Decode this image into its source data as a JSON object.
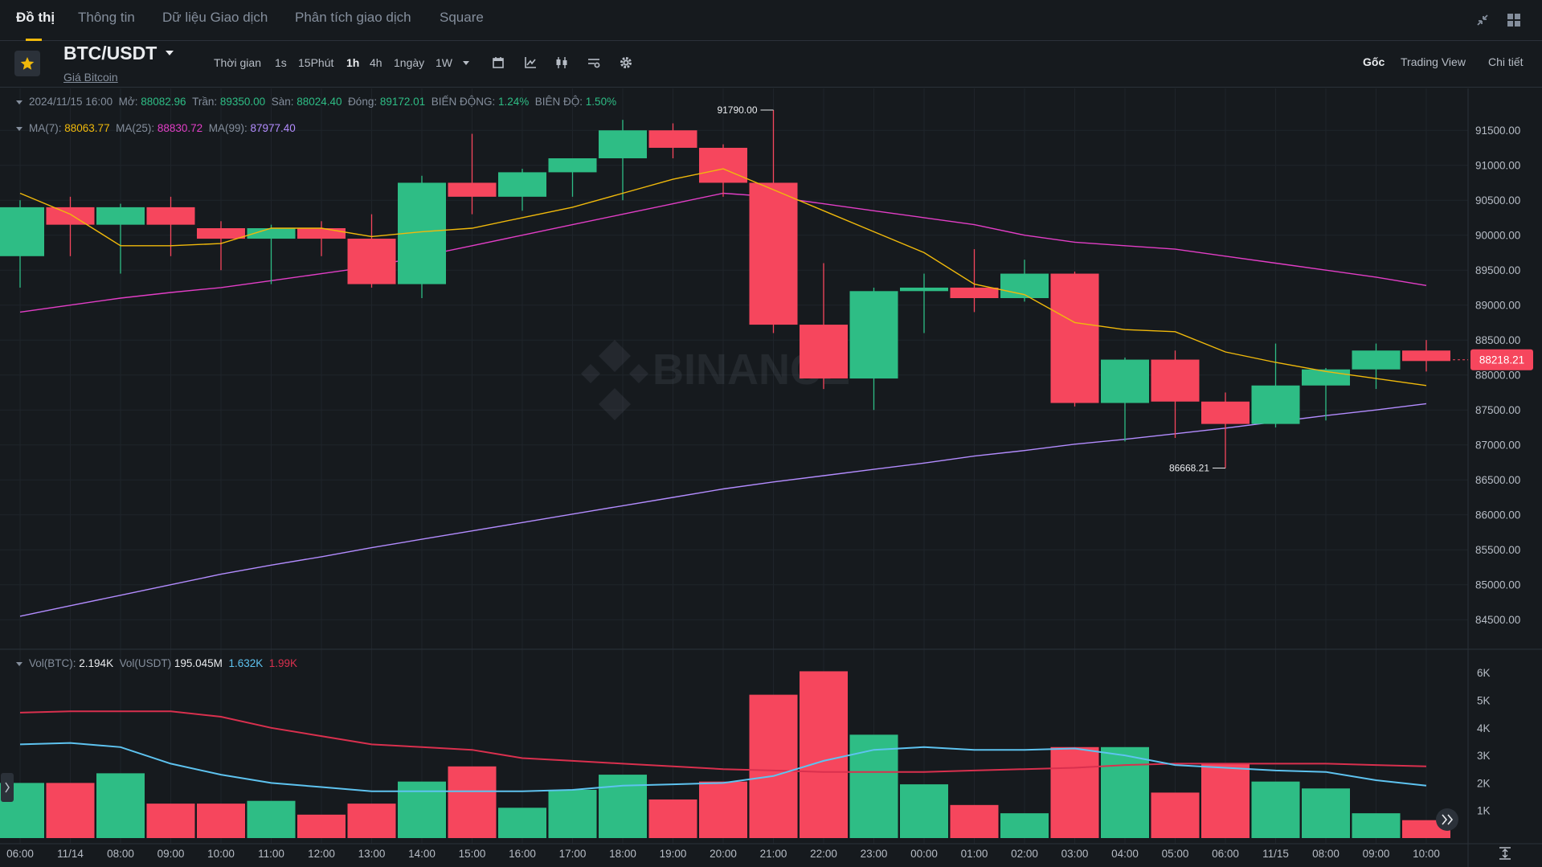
{
  "nav": {
    "tabs": [
      {
        "label": "Đồ thị",
        "active": true
      },
      {
        "label": "Thông tin"
      },
      {
        "label": "Dữ liệu Giao dịch"
      },
      {
        "label": "Phân tích giao dịch"
      },
      {
        "label": "Square"
      }
    ],
    "icons": [
      "collapse-icon",
      "layout-grid-icon"
    ]
  },
  "header": {
    "symbol": "BTC/USDT",
    "subname": "Giá Bitcoin",
    "timeframes": [
      {
        "label": "Thời gian"
      },
      {
        "label": "1s"
      },
      {
        "label": "15Phút"
      },
      {
        "label": "1h",
        "active": true
      },
      {
        "label": "4h"
      },
      {
        "label": "1ngày"
      },
      {
        "label": "1W"
      }
    ],
    "toolbar_icons": [
      "calendar-icon",
      "indicator-icon",
      "candle-type-icon",
      "settings-list-icon",
      "gear-icon"
    ],
    "views": [
      {
        "label": "Gốc",
        "active": true
      },
      {
        "label": "Trading View"
      },
      {
        "label": "Chi tiết"
      }
    ]
  },
  "ohlc": {
    "date": "2024/11/15 16:00",
    "open_label": "Mở:",
    "open": "88082.96",
    "high_label": "Trần:",
    "high": "89350.00",
    "low_label": "Sàn:",
    "low": "88024.40",
    "close_label": "Đóng:",
    "close": "89172.01",
    "change_label": "BIẾN ĐỘNG:",
    "change": "1.24%",
    "amp_label": "BIÊN ĐỘ:",
    "amp": "1.50%"
  },
  "ma": {
    "ma7_label": "MA(7):",
    "ma7": "88063.77",
    "ma25_label": "MA(25):",
    "ma25": "88830.72",
    "ma99_label": "MA(99):",
    "ma99": "87977.40"
  },
  "vol": {
    "label_btc": "Vol(BTC):",
    "btc": "2.194K",
    "label_usdt": "Vol(USDT)",
    "usdt": "195.045M",
    "ma1": "1.632K",
    "ma2": "1.99K"
  },
  "watermark": "BINANCE",
  "colors": {
    "up": "#2ebd85",
    "down": "#f6465d",
    "ma7": "#f0b90b",
    "ma25": "#e23ec6",
    "ma99": "#b38cff",
    "vol_ma1": "#5ec3f0",
    "vol_ma2": "#d9304e"
  },
  "chart_data": {
    "type": "candlestick",
    "x_tick_labels": [
      "06:00",
      "11/14",
      "08:00",
      "09:00",
      "10:00",
      "11:00",
      "12:00",
      "13:00",
      "14:00",
      "15:00",
      "16:00",
      "17:00",
      "18:00",
      "19:00",
      "20:00",
      "21:00",
      "22:00",
      "23:00",
      "00:00",
      "01:00",
      "02:00",
      "03:00",
      "04:00",
      "05:00",
      "06:00",
      "11/15",
      "08:00",
      "09:00",
      "10:00"
    ],
    "y_ticks": [
      84500,
      85000,
      85500,
      86000,
      86500,
      87000,
      87500,
      88000,
      88500,
      89000,
      89500,
      90000,
      90500,
      91000,
      91500
    ],
    "ylim": [
      84100,
      92100
    ],
    "candles": [
      {
        "o": 89700,
        "h": 90500,
        "l": 89250,
        "c": 90400
      },
      {
        "o": 90400,
        "h": 90550,
        "l": 89700,
        "c": 90150
      },
      {
        "o": 90150,
        "h": 90450,
        "l": 89450,
        "c": 90400
      },
      {
        "o": 90400,
        "h": 90550,
        "l": 89700,
        "c": 90150
      },
      {
        "o": 90100,
        "h": 90200,
        "l": 89500,
        "c": 89950
      },
      {
        "o": 89950,
        "h": 90150,
        "l": 89300,
        "c": 90100
      },
      {
        "o": 90100,
        "h": 90200,
        "l": 89700,
        "c": 89950
      },
      {
        "o": 89950,
        "h": 90300,
        "l": 89250,
        "c": 89300
      },
      {
        "o": 89300,
        "h": 90850,
        "l": 89100,
        "c": 90750
      },
      {
        "o": 90750,
        "h": 91450,
        "l": 90300,
        "c": 90550
      },
      {
        "o": 90550,
        "h": 90950,
        "l": 90350,
        "c": 90900
      },
      {
        "o": 90900,
        "h": 91050,
        "l": 90550,
        "c": 91100
      },
      {
        "o": 91100,
        "h": 91650,
        "l": 90500,
        "c": 91500
      },
      {
        "o": 91500,
        "h": 91600,
        "l": 91100,
        "c": 91250
      },
      {
        "o": 91250,
        "h": 91300,
        "l": 90550,
        "c": 90750
      },
      {
        "o": 90750,
        "h": 91790,
        "l": 88600,
        "c": 88720
      },
      {
        "o": 88720,
        "h": 89600,
        "l": 87800,
        "c": 87950
      },
      {
        "o": 87950,
        "h": 89250,
        "l": 87500,
        "c": 89200
      },
      {
        "o": 89200,
        "h": 89450,
        "l": 88600,
        "c": 89250
      },
      {
        "o": 89250,
        "h": 89800,
        "l": 88900,
        "c": 89100
      },
      {
        "o": 89100,
        "h": 89650,
        "l": 89050,
        "c": 89450
      },
      {
        "o": 89450,
        "h": 89480,
        "l": 87550,
        "c": 87600
      },
      {
        "o": 87600,
        "h": 88250,
        "l": 87050,
        "c": 88220
      },
      {
        "o": 88220,
        "h": 88350,
        "l": 87100,
        "c": 87620
      },
      {
        "o": 87620,
        "h": 87750,
        "l": 86668.21,
        "c": 87300
      },
      {
        "o": 87300,
        "h": 88450,
        "l": 87250,
        "c": 87850
      },
      {
        "o": 87850,
        "h": 88100,
        "l": 87350,
        "c": 88080
      },
      {
        "o": 88080,
        "h": 88450,
        "l": 87800,
        "c": 88350
      },
      {
        "o": 88350,
        "h": 88500,
        "l": 88050,
        "c": 88200
      }
    ],
    "ma7": [
      90600,
      90300,
      89850,
      89850,
      89880,
      90100,
      90100,
      89980,
      90050,
      90100,
      90250,
      90400,
      90600,
      90800,
      90950,
      90650,
      90350,
      90050,
      89750,
      89300,
      89150,
      88750,
      88650,
      88620,
      88330,
      88180,
      88050,
      87950,
      87850
    ],
    "ma25": [
      88900,
      89000,
      89100,
      89180,
      89250,
      89350,
      89450,
      89550,
      89700,
      89850,
      90000,
      90150,
      90300,
      90450,
      90600,
      90550,
      90450,
      90350,
      90250,
      90150,
      90000,
      89900,
      89850,
      89800,
      89700,
      89600,
      89500,
      89400,
      89280
    ],
    "ma99": [
      84550,
      84700,
      84850,
      85000,
      85150,
      85280,
      85400,
      85530,
      85650,
      85770,
      85890,
      86010,
      86130,
      86250,
      86370,
      86470,
      86560,
      86650,
      86740,
      86840,
      86920,
      87010,
      87080,
      87160,
      87240,
      87330,
      87420,
      87500,
      87590
    ],
    "high_label": "91790.00",
    "low_label": "86668.21",
    "last_price": "88218.21",
    "last_value": 88218.21,
    "volume": {
      "y_ticks": [
        "1K",
        "2K",
        "3K",
        "4K",
        "5K",
        "6K"
      ],
      "ylim": [
        0,
        6500
      ],
      "values": [
        2000,
        2000,
        2350,
        1250,
        1250,
        1350,
        850,
        1250,
        2050,
        2600,
        1100,
        1750,
        2300,
        1400,
        2050,
        5200,
        6050,
        3750,
        1950,
        1200,
        900,
        3300,
        3300,
        1650,
        2700,
        2050,
        1800,
        900,
        650
      ],
      "ma1": [
        3400,
        3450,
        3300,
        2700,
        2300,
        2000,
        1850,
        1700,
        1700,
        1700,
        1700,
        1750,
        1900,
        1950,
        2000,
        2250,
        2800,
        3200,
        3300,
        3200,
        3200,
        3250,
        3000,
        2650,
        2550,
        2450,
        2400,
        2100,
        1900
      ],
      "ma2": [
        4550,
        4600,
        4600,
        4600,
        4400,
        4000,
        3700,
        3400,
        3300,
        3200,
        2900,
        2800,
        2700,
        2600,
        2500,
        2450,
        2400,
        2400,
        2400,
        2450,
        2500,
        2550,
        2650,
        2700,
        2700,
        2700,
        2700,
        2650,
        2600
      ]
    }
  }
}
